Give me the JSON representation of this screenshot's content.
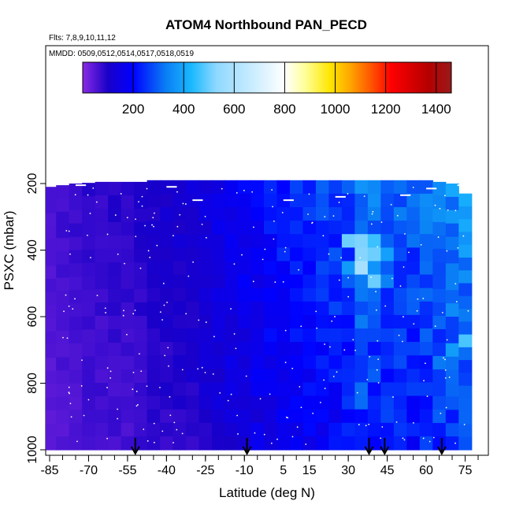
{
  "chart_data": {
    "type": "heatmap",
    "title": "ATOM4 Northbound PAN_PECD",
    "flights_label": "Flts: 7,8,9,10,11,12",
    "dates_label": "MMDD: 0509,0512,0514,0517,0518,0519",
    "xlabel": "Latitude (deg N)",
    "ylabel": "PSXC (mbar)",
    "x_ticks": [
      -85,
      -70,
      -55,
      -40,
      -25,
      -10,
      5,
      15,
      30,
      45,
      60,
      75
    ],
    "x_tick_labels": [
      "-85",
      "-70",
      "-55",
      "-40",
      "-25",
      "-10",
      "5",
      "15",
      "30",
      "45",
      "60",
      "75"
    ],
    "y_ticks": [
      200,
      400,
      600,
      800,
      1000
    ],
    "y_tick_labels": [
      "200",
      "400",
      "600",
      "800",
      "1000"
    ],
    "xlim": [
      -85,
      80
    ],
    "ylim": [
      1000,
      190
    ],
    "colorbar": {
      "min": 0,
      "max": 1460,
      "ticks": [
        200,
        400,
        600,
        800,
        1000,
        1200,
        1400
      ],
      "tick_labels": [
        "200",
        "400",
        "600",
        "800",
        "1000",
        "1200",
        "1400"
      ],
      "colors": [
        "#8a2be2",
        "#1a00c8",
        "#0000ff",
        "#0a7ff5",
        "#1ab8ff",
        "#8fd8ff",
        "#ffffff",
        "#ffff9a",
        "#ffe600",
        "#ffa500",
        "#ff4d00",
        "#ff0000",
        "#b40000",
        "#9a1a1a"
      ],
      "color_stops": [
        0,
        100,
        200,
        330,
        430,
        530,
        800,
        880,
        980,
        1060,
        1150,
        1220,
        1370,
        1460
      ]
    },
    "arrow_latitudes": [
      -52,
      -9,
      38,
      44,
      66
    ],
    "columns": [
      {
        "lat": -85,
        "top": 210,
        "bottom": 1000,
        "mean": 40
      },
      {
        "lat": -80,
        "top": 205,
        "bottom": 1000,
        "mean": 45
      },
      {
        "lat": -75,
        "top": 200,
        "bottom": 1000,
        "mean": 50
      },
      {
        "lat": -70,
        "top": 198,
        "bottom": 1000,
        "mean": 55
      },
      {
        "lat": -65,
        "top": 195,
        "bottom": 1000,
        "mean": 55
      },
      {
        "lat": -60,
        "top": 195,
        "bottom": 1000,
        "mean": 60
      },
      {
        "lat": -55,
        "top": 195,
        "bottom": 1000,
        "mean": 60
      },
      {
        "lat": -50,
        "top": 195,
        "bottom": 1000,
        "mean": 65
      },
      {
        "lat": -45,
        "top": 190,
        "bottom": 1000,
        "mean": 70
      },
      {
        "lat": -40,
        "top": 190,
        "bottom": 1000,
        "mean": 75
      },
      {
        "lat": -35,
        "top": 190,
        "bottom": 1000,
        "mean": 80
      },
      {
        "lat": -30,
        "top": 190,
        "bottom": 1000,
        "mean": 85
      },
      {
        "lat": -25,
        "top": 190,
        "bottom": 1000,
        "mean": 95
      },
      {
        "lat": -20,
        "top": 190,
        "bottom": 1000,
        "mean": 105
      },
      {
        "lat": -15,
        "top": 190,
        "bottom": 1000,
        "mean": 115
      },
      {
        "lat": -10,
        "top": 190,
        "bottom": 1000,
        "mean": 125
      },
      {
        "lat": -5,
        "top": 190,
        "bottom": 1000,
        "mean": 135
      },
      {
        "lat": 0,
        "top": 190,
        "bottom": 1000,
        "mean": 145
      },
      {
        "lat": 5,
        "top": 190,
        "bottom": 1000,
        "mean": 155
      },
      {
        "lat": 10,
        "top": 190,
        "bottom": 1000,
        "mean": 160
      },
      {
        "lat": 15,
        "top": 190,
        "bottom": 1000,
        "mean": 170
      },
      {
        "lat": 20,
        "top": 190,
        "bottom": 1000,
        "mean": 175
      },
      {
        "lat": 25,
        "top": 190,
        "bottom": 1000,
        "mean": 180
      },
      {
        "lat": 30,
        "top": 190,
        "bottom": 1000,
        "mean": 190
      },
      {
        "lat": 35,
        "top": 190,
        "bottom": 1000,
        "mean": 230
      },
      {
        "lat": 40,
        "top": 190,
        "bottom": 1000,
        "mean": 210
      },
      {
        "lat": 45,
        "top": 190,
        "bottom": 1000,
        "mean": 205
      },
      {
        "lat": 50,
        "top": 190,
        "bottom": 1000,
        "mean": 200
      },
      {
        "lat": 55,
        "top": 190,
        "bottom": 1000,
        "mean": 195
      },
      {
        "lat": 60,
        "top": 190,
        "bottom": 1000,
        "mean": 215
      },
      {
        "lat": 65,
        "top": 195,
        "bottom": 1000,
        "mean": 230
      },
      {
        "lat": 70,
        "top": 200,
        "bottom": 1000,
        "mean": 235
      },
      {
        "lat": 75,
        "top": 230,
        "bottom": 1000,
        "mean": 245
      }
    ]
  }
}
